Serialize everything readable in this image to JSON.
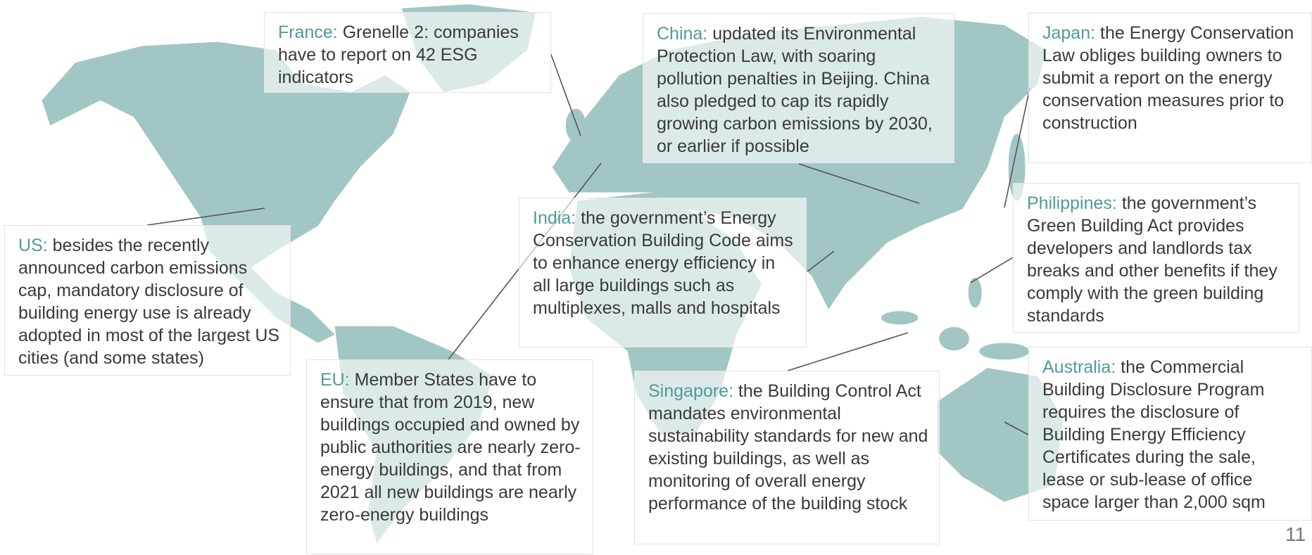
{
  "callouts": [
    {
      "region": "France:",
      "text": "Grenelle 2: companies have to report on 42 ESG indicators"
    },
    {
      "region": "China:",
      "text": "updated its Environmental Protection Law, with soaring pollution penalties in Beijing. China also pledged to cap its rapidly growing carbon emissions by 2030, or earlier if possible"
    },
    {
      "region": "Japan:",
      "text": "the Energy Conservation Law obliges building owners to submit a report on the energy conservation measures prior to construction"
    },
    {
      "region": "US:",
      "text": "besides the recently announced carbon emissions cap, mandatory disclosure of building energy use is already adopted in most of the largest US cities (and some states)"
    },
    {
      "region": "India:",
      "text": "the government’s Energy Conservation Building Code aims to enhance energy efficiency in all large buildings such as multiplexes, malls and hospitals"
    },
    {
      "region": "Philippines:",
      "text": "the government’s Green Building Act provides developers and landlords tax breaks and other benefits if they comply with the green building standards"
    },
    {
      "region": "EU:",
      "text": "Member States have to ensure that from 2019, new buildings occupied and owned by public authorities are nearly zero-energy buildings, and that from 2021 all new buildings are nearly zero-energy buildings"
    },
    {
      "region": "Singapore:",
      "text": "the Building Control Act mandates environmental sustainability standards for new and existing buildings, as well as monitoring of overall energy performance of the building stock"
    },
    {
      "region": "Australia:",
      "text": "the Commercial Building Disclosure Program requires the disclosure of Building Energy Efficiency Certificates during the sale, lease or sub-lease of office space larger than 2,000 sqm"
    }
  ],
  "page_number": "11"
}
